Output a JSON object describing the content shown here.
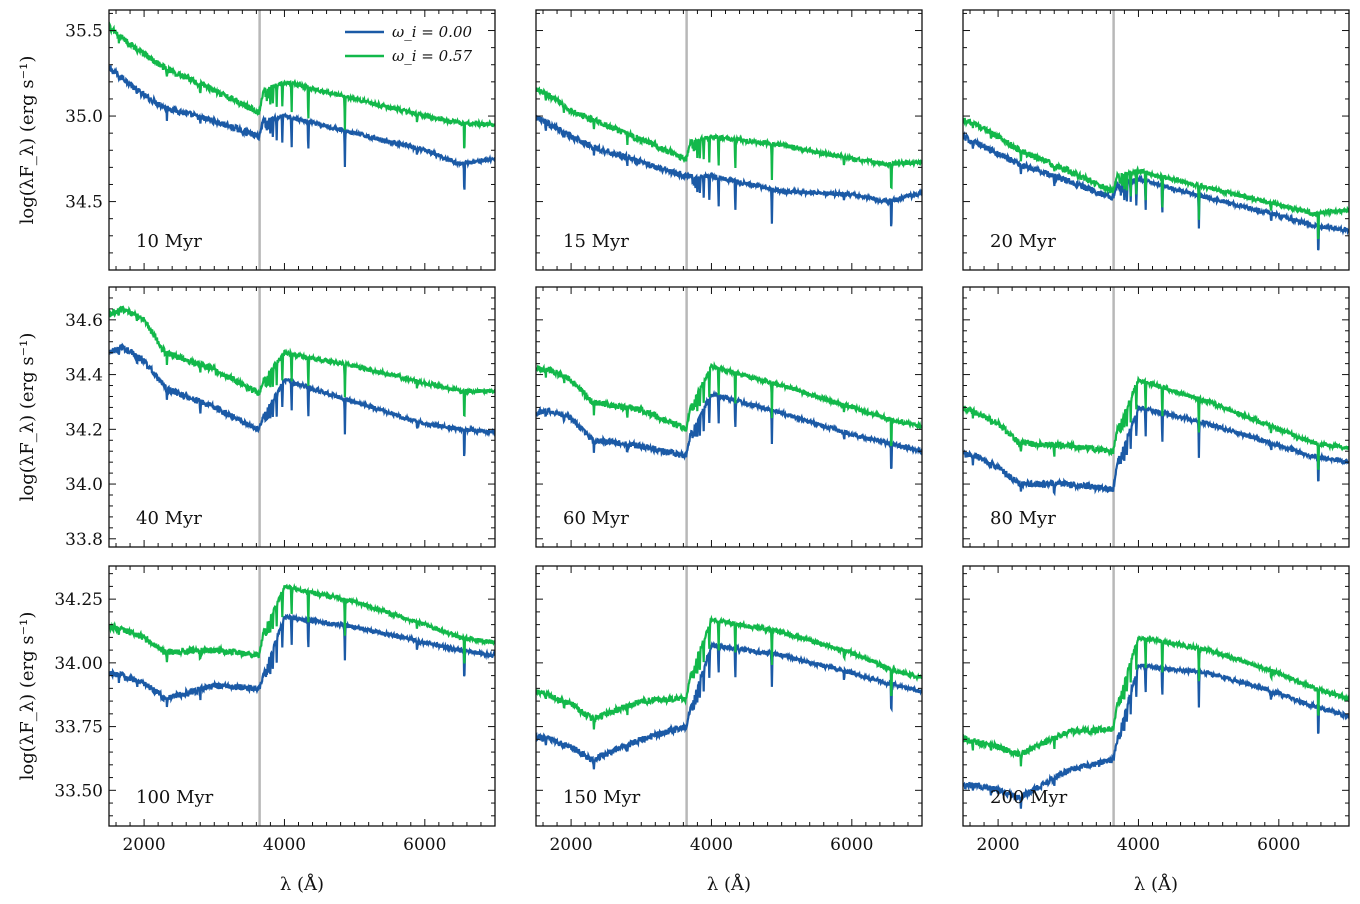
{
  "chart_data": {
    "type": "line",
    "title": "",
    "xlabel": "λ (Å)",
    "ylabel": "log(λF_λ) (erg s⁻¹)",
    "xlim": [
      1500,
      7000
    ],
    "x_ticks": [
      2000,
      4000,
      6000
    ],
    "balmer_jump": 3646,
    "legend": [
      {
        "name": "ω_i = 0.00",
        "color": "#1b5aa6"
      },
      {
        "name": "ω_i = 0.57",
        "color": "#12b84a"
      }
    ],
    "rows": [
      {
        "ylim": [
          34.1,
          35.62
        ],
        "yticks": [
          34.5,
          35.0,
          35.5
        ]
      },
      {
        "ylim": [
          33.77,
          34.72
        ],
        "yticks": [
          33.8,
          34.0,
          34.2,
          34.4,
          34.6
        ]
      },
      {
        "ylim": [
          33.36,
          34.38
        ],
        "yticks": [
          33.5,
          33.75,
          34.0,
          34.25
        ]
      }
    ],
    "panels": [
      {
        "label": "10 Myr",
        "row": 0,
        "col": 0,
        "series": [
          {
            "name": "ω_i = 0.00",
            "x": [
              1500,
              1700,
              2000,
              2300,
              3000,
              3640,
              3700,
              4000,
              5000,
              6000,
              6500,
              7000
            ],
            "y": [
              35.28,
              35.22,
              35.12,
              35.05,
              34.97,
              34.88,
              34.98,
              35.0,
              34.9,
              34.8,
              34.72,
              34.75
            ]
          },
          {
            "name": "ω_i = 0.57",
            "x": [
              1500,
              1700,
              2000,
              2300,
              3000,
              3640,
              3700,
              4000,
              5000,
              6000,
              6500,
              7000
            ],
            "y": [
              35.52,
              35.45,
              35.36,
              35.28,
              35.15,
              35.02,
              35.15,
              35.2,
              35.1,
              35.0,
              34.96,
              34.95
            ]
          }
        ]
      },
      {
        "label": "15 Myr",
        "row": 0,
        "col": 1,
        "series": [
          {
            "name": "ω_i = 0.00",
            "x": [
              1500,
              1700,
              2000,
              2300,
              3000,
              3640,
              3700,
              4000,
              5000,
              6000,
              6500,
              7000
            ],
            "y": [
              35.0,
              34.95,
              34.88,
              34.82,
              34.73,
              34.65,
              34.65,
              34.65,
              34.56,
              34.54,
              34.5,
              34.55
            ]
          },
          {
            "name": "ω_i = 0.57",
            "x": [
              1500,
              1700,
              2000,
              2300,
              3000,
              3640,
              3700,
              4000,
              5000,
              6000,
              6500,
              7000
            ],
            "y": [
              35.15,
              35.12,
              35.03,
              34.98,
              34.86,
              34.75,
              34.85,
              34.88,
              34.83,
              34.75,
              34.72,
              34.73
            ]
          }
        ]
      },
      {
        "label": "20 Myr",
        "row": 0,
        "col": 2,
        "series": [
          {
            "name": "ω_i = 0.00",
            "x": [
              1500,
              1700,
              2000,
              2300,
              3000,
              3640,
              3700,
              4000,
              5000,
              6000,
              6500,
              7000
            ],
            "y": [
              34.88,
              34.84,
              34.78,
              34.72,
              34.62,
              34.52,
              34.6,
              34.63,
              34.52,
              34.42,
              34.36,
              34.33
            ]
          },
          {
            "name": "ω_i = 0.57",
            "x": [
              1500,
              1700,
              2000,
              2300,
              3000,
              3640,
              3700,
              4000,
              5000,
              6000,
              6500,
              7000
            ],
            "y": [
              34.98,
              34.95,
              34.88,
              34.8,
              34.68,
              34.56,
              34.65,
              34.68,
              34.58,
              34.48,
              34.43,
              34.45
            ]
          }
        ]
      },
      {
        "label": "40 Myr",
        "row": 1,
        "col": 0,
        "series": [
          {
            "name": "ω_i = 0.00",
            "x": [
              1500,
              1700,
              2000,
              2300,
              3000,
              3640,
              3700,
              4000,
              5000,
              6000,
              6500,
              7000
            ],
            "y": [
              34.48,
              34.5,
              34.45,
              34.35,
              34.28,
              34.2,
              34.25,
              34.38,
              34.3,
              34.22,
              34.2,
              34.19
            ]
          },
          {
            "name": "ω_i = 0.57",
            "x": [
              1500,
              1700,
              2000,
              2300,
              3000,
              3640,
              3700,
              4000,
              5000,
              6000,
              6500,
              7000
            ],
            "y": [
              34.62,
              34.64,
              34.6,
              34.48,
              34.42,
              34.33,
              34.38,
              34.48,
              34.43,
              34.37,
              34.34,
              34.34
            ]
          }
        ]
      },
      {
        "label": "60 Myr",
        "row": 1,
        "col": 1,
        "series": [
          {
            "name": "ω_i = 0.00",
            "x": [
              1500,
              1700,
              2000,
              2300,
              3000,
              3640,
              3700,
              4000,
              5000,
              6000,
              6500,
              7000
            ],
            "y": [
              34.26,
              34.27,
              34.24,
              34.16,
              34.14,
              34.1,
              34.18,
              34.33,
              34.26,
              34.18,
              34.15,
              34.12
            ]
          },
          {
            "name": "ω_i = 0.57",
            "x": [
              1500,
              1700,
              2000,
              2300,
              3000,
              3640,
              3700,
              4000,
              5000,
              6000,
              6500,
              7000
            ],
            "y": [
              34.42,
              34.42,
              34.38,
              34.3,
              34.27,
              34.2,
              34.28,
              34.43,
              34.36,
              34.28,
              34.24,
              34.21
            ]
          }
        ]
      },
      {
        "label": "80 Myr",
        "row": 1,
        "col": 2,
        "series": [
          {
            "name": "ω_i = 0.00",
            "x": [
              1500,
              1700,
              2000,
              2300,
              3000,
              3640,
              3700,
              4000,
              5000,
              6000,
              6500,
              7000
            ],
            "y": [
              34.11,
              34.1,
              34.06,
              34.0,
              34.0,
              33.98,
              34.08,
              34.28,
              34.22,
              34.14,
              34.1,
              34.08
            ]
          },
          {
            "name": "ω_i = 0.57",
            "x": [
              1500,
              1700,
              2000,
              2300,
              3000,
              3640,
              3700,
              4000,
              5000,
              6000,
              6500,
              7000
            ],
            "y": [
              34.28,
              34.26,
              34.22,
              34.15,
              34.14,
              34.12,
              34.2,
              34.38,
              34.3,
              34.2,
              34.15,
              34.13
            ]
          }
        ]
      },
      {
        "label": "100 Myr",
        "row": 2,
        "col": 0,
        "series": [
          {
            "name": "ω_i = 0.00",
            "x": [
              1500,
              1700,
              2000,
              2300,
              3000,
              3640,
              3700,
              4000,
              5000,
              6000,
              6500,
              7000
            ],
            "y": [
              33.96,
              33.95,
              33.92,
              33.86,
              33.91,
              33.9,
              33.95,
              34.18,
              34.14,
              34.08,
              34.05,
              34.03
            ]
          },
          {
            "name": "ω_i = 0.57",
            "x": [
              1500,
              1700,
              2000,
              2300,
              3000,
              3640,
              3700,
              4000,
              5000,
              6000,
              6500,
              7000
            ],
            "y": [
              34.14,
              34.13,
              34.1,
              34.04,
              34.05,
              34.03,
              34.12,
              34.3,
              34.24,
              34.15,
              34.1,
              34.08
            ]
          }
        ]
      },
      {
        "label": "150 Myr",
        "row": 2,
        "col": 1,
        "series": [
          {
            "name": "ω_i = 0.00",
            "x": [
              1500,
              1700,
              2000,
              2300,
              3000,
              3640,
              3700,
              4000,
              5000,
              6000,
              6500,
              7000
            ],
            "y": [
              33.71,
              33.7,
              33.67,
              33.62,
              33.7,
              33.75,
              33.82,
              34.07,
              34.03,
              33.96,
              33.92,
              33.89
            ]
          },
          {
            "name": "ω_i = 0.57",
            "x": [
              1500,
              1700,
              2000,
              2300,
              3000,
              3640,
              3700,
              4000,
              5000,
              6000,
              6500,
              7000
            ],
            "y": [
              33.89,
              33.87,
              33.84,
              33.78,
              33.85,
              33.86,
              33.95,
              34.17,
              34.12,
              34.04,
              33.98,
              33.94
            ]
          }
        ]
      },
      {
        "label": "200 Myr",
        "row": 2,
        "col": 2,
        "series": [
          {
            "name": "ω_i = 0.00",
            "x": [
              1500,
              1700,
              2000,
              2300,
              3000,
              3640,
              3700,
              4000,
              5000,
              6000,
              6500,
              7000
            ],
            "y": [
              33.52,
              33.52,
              33.5,
              33.47,
              33.58,
              33.62,
              33.7,
              33.99,
              33.96,
              33.88,
              33.83,
              33.79
            ]
          },
          {
            "name": "ω_i = 0.57",
            "x": [
              1500,
              1700,
              2000,
              2300,
              3000,
              3640,
              3700,
              4000,
              5000,
              6000,
              6500,
              7000
            ],
            "y": [
              33.7,
              33.69,
              33.67,
              33.64,
              33.73,
              33.74,
              33.84,
              34.1,
              34.05,
              33.96,
              33.9,
              33.86
            ]
          }
        ]
      }
    ]
  }
}
